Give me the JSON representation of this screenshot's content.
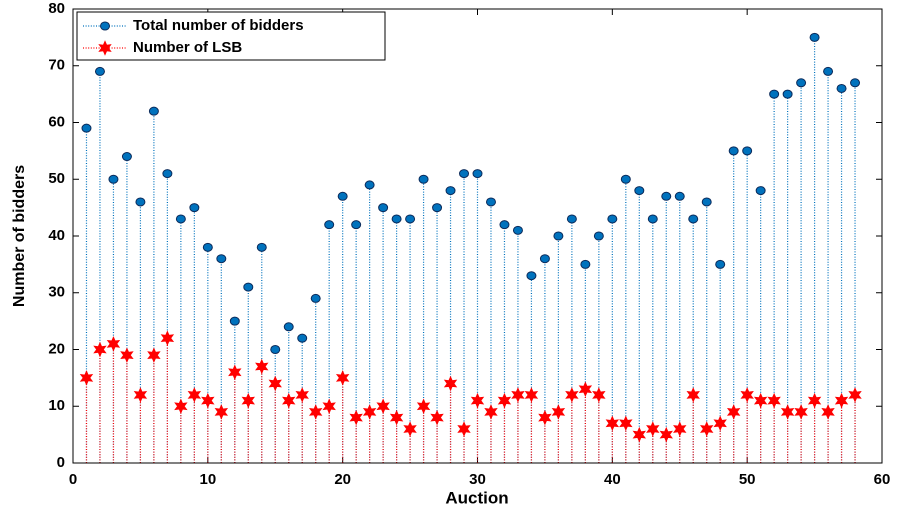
{
  "chart_data": {
    "type": "stem",
    "x": [
      1,
      2,
      3,
      4,
      5,
      6,
      7,
      8,
      9,
      10,
      11,
      12,
      13,
      14,
      15,
      16,
      17,
      18,
      19,
      20,
      21,
      22,
      23,
      24,
      25,
      26,
      27,
      28,
      29,
      30,
      31,
      32,
      33,
      34,
      35,
      36,
      37,
      38,
      39,
      40,
      41,
      42,
      43,
      44,
      45,
      46,
      47,
      48,
      49,
      50,
      51,
      52,
      53,
      54,
      55,
      56,
      57,
      58
    ],
    "series": [
      {
        "name": "Total number of bidders",
        "color": "#0072bd",
        "marker": "circle",
        "values": [
          59,
          69,
          50,
          54,
          46,
          62,
          51,
          43,
          45,
          38,
          36,
          25,
          31,
          38,
          20,
          24,
          22,
          29,
          42,
          47,
          42,
          49,
          45,
          43,
          43,
          50,
          45,
          48,
          51,
          51,
          46,
          42,
          41,
          33,
          36,
          40,
          43,
          35,
          40,
          43,
          50,
          48,
          43,
          47,
          47,
          43,
          46,
          35,
          55,
          55,
          48,
          65,
          65,
          67,
          75,
          69,
          66,
          67
        ]
      },
      {
        "name": "Number of LSB",
        "color": "#ff0000",
        "marker": "star",
        "values": [
          15,
          20,
          21,
          19,
          12,
          19,
          22,
          10,
          12,
          11,
          9,
          16,
          11,
          17,
          14,
          11,
          12,
          9,
          10,
          15,
          8,
          9,
          10,
          8,
          6,
          10,
          8,
          14,
          6,
          11,
          9,
          11,
          12,
          12,
          8,
          9,
          12,
          13,
          12,
          7,
          7,
          5,
          6,
          5,
          6,
          12,
          6,
          7,
          9,
          12,
          11,
          11,
          9,
          9,
          11,
          9,
          11,
          12
        ]
      }
    ],
    "xlabel": "Auction",
    "ylabel": "Number of bidders",
    "xlim": [
      0,
      60
    ],
    "xticks": [
      0,
      10,
      20,
      30,
      40,
      50,
      60
    ],
    "ylim": [
      0,
      80
    ],
    "yticks": [
      0,
      10,
      20,
      30,
      40,
      50,
      60,
      70,
      80
    ],
    "legend": "upper left"
  }
}
